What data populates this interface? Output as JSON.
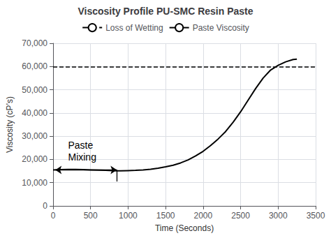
{
  "chart_data": {
    "type": "line",
    "title": "Viscosity Profile PU-SMC Resin Paste",
    "x_label": "Time (Seconds)",
    "y_label": "Viscosity (cP’s)",
    "x": [
      0,
      100,
      200,
      300,
      400,
      500,
      600,
      700,
      800,
      850,
      900,
      1000,
      1100,
      1200,
      1300,
      1400,
      1500,
      1600,
      1700,
      1800,
      1900,
      2000,
      2100,
      2200,
      2300,
      2400,
      2500,
      2600,
      2700,
      2800,
      2900,
      3000,
      3100,
      3200,
      3250
    ],
    "series": [
      {
        "name": "Loss of Wetting",
        "type": "hline",
        "y": 60000,
        "color": "#000000",
        "line_style": "dashed"
      },
      {
        "name": "Paste Viscosity",
        "type": "line",
        "color": "#000000",
        "line_style": "solid",
        "values": [
          15500,
          15600,
          15700,
          15700,
          15600,
          15500,
          15400,
          15300,
          15200,
          15100,
          15100,
          15200,
          15300,
          15500,
          15800,
          16200,
          16800,
          17500,
          18500,
          19800,
          21500,
          23500,
          26000,
          28800,
          32000,
          36000,
          40500,
          45500,
          50500,
          55000,
          58500,
          60500,
          62000,
          63000,
          63200
        ]
      }
    ],
    "xlim": [
      0,
      3500
    ],
    "ylim": [
      0,
      70000
    ],
    "xticks": [
      0,
      500,
      1000,
      1500,
      2000,
      2500,
      3000,
      3500
    ],
    "yticks": [
      0,
      {
        "value": 10000,
        "label": "10,000"
      },
      {
        "value": 20000,
        "label": "20,000"
      },
      {
        "value": 30000,
        "label": "30,000"
      },
      {
        "value": 40000,
        "label": "40,000"
      },
      {
        "value": 50000,
        "label": "50,000"
      },
      {
        "value": 60000,
        "label": "60,000"
      },
      {
        "value": 70000,
        "label": "70,000"
      }
    ],
    "grid": true,
    "legend": "upper center",
    "annotations": [
      {
        "text": "Paste\nMixing",
        "x": 200,
        "y": 18500,
        "color": "#000000"
      }
    ],
    "vlines": [
      {
        "x": 850,
        "ymin": 10500,
        "ymax": 15500,
        "color": "#000000"
      }
    ],
    "arrows": [
      {
        "x_start": 30,
        "x_end": 850,
        "y": 15500,
        "style": "<->",
        "color": "#000000"
      }
    ]
  }
}
